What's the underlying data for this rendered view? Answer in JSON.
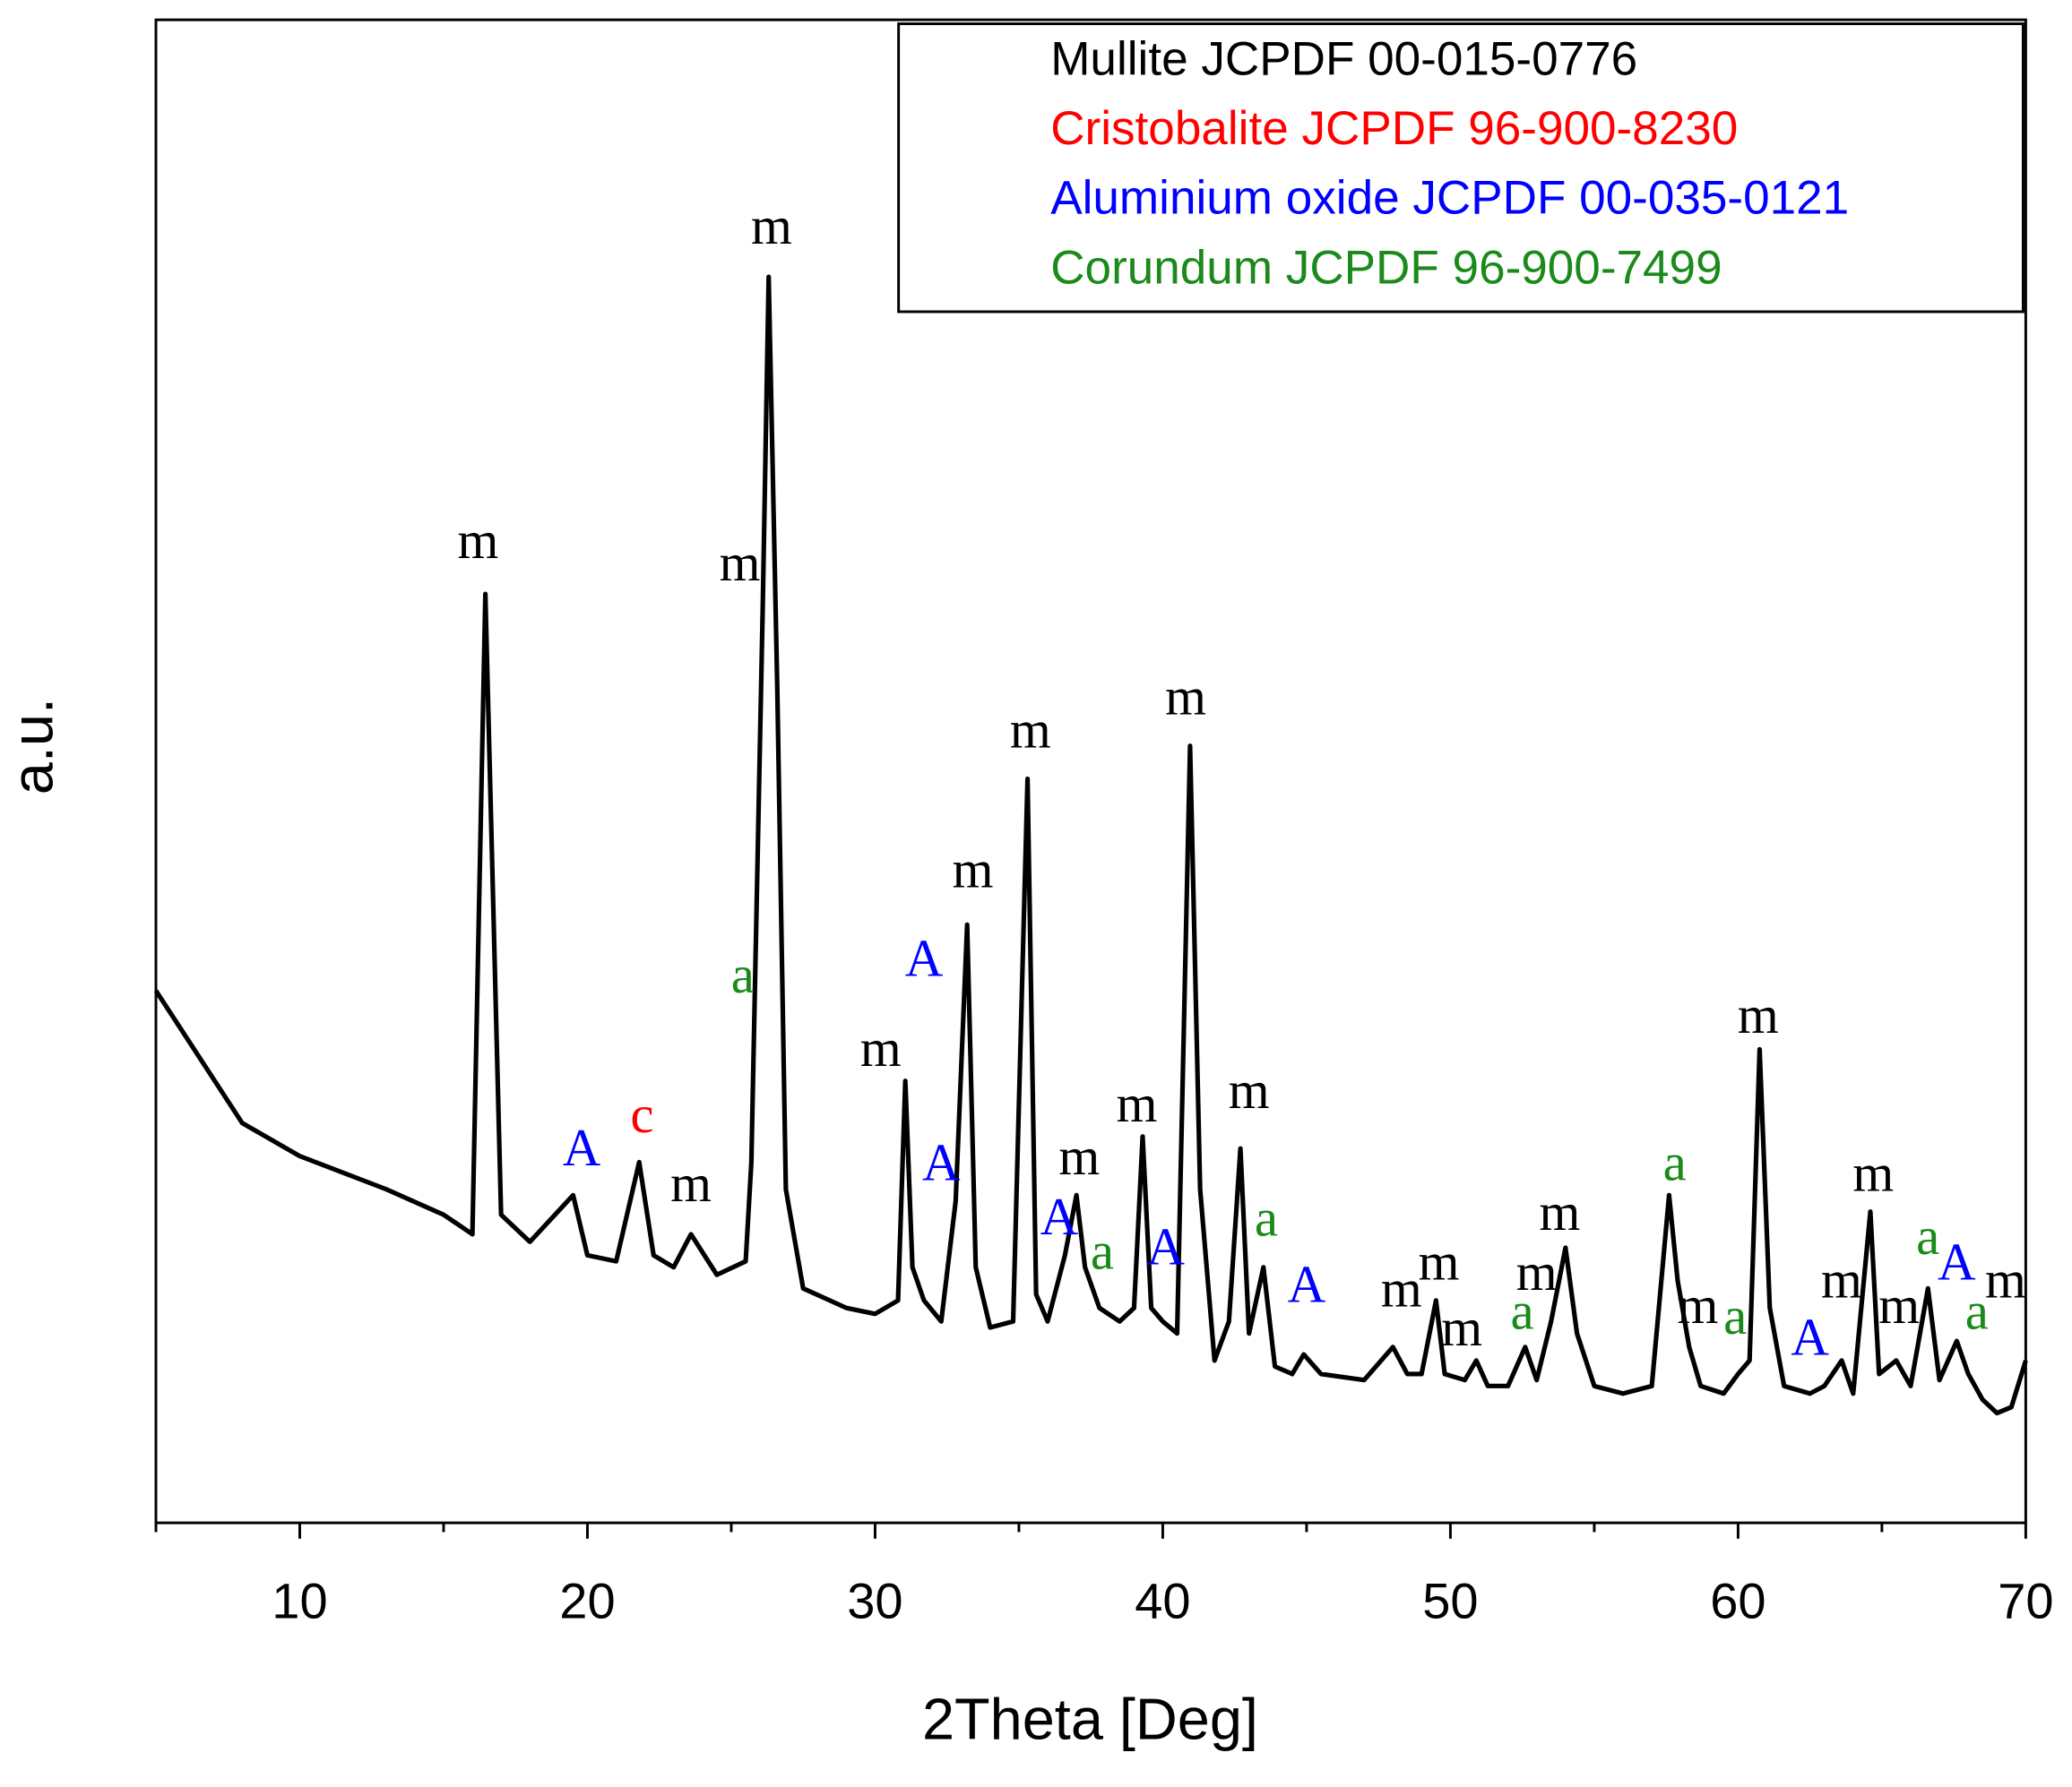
{
  "chart_data": {
    "type": "line",
    "x_label": "2Theta [Deg]",
    "y_label": "a.u.",
    "color": "#000000",
    "x": [
      5,
      8,
      10,
      13,
      15,
      16,
      16.45,
      17,
      18,
      19.5,
      20,
      21,
      21.8,
      22.3,
      23,
      23.6,
      24.5,
      25.5,
      25.7,
      26.1,
      26.3,
      26.6,
      26.9,
      27.5,
      29,
      30,
      30.8,
      31.05,
      31.3,
      31.7,
      32.3,
      32.8,
      33.2,
      33.5,
      34,
      34.8,
      35.3,
      35.6,
      36,
      36.6,
      37,
      37.3,
      37.8,
      38.5,
      39,
      39.3,
      39.6,
      40,
      40.5,
      40.95,
      41.3,
      41.8,
      42.3,
      42.7,
      43,
      43.5,
      43.9,
      44.5,
      44.9,
      45.5,
      47,
      48,
      48.5,
      49,
      49.5,
      49.8,
      50.5,
      50.9,
      51.3,
      52,
      52.6,
      53,
      53.5,
      54,
      54.4,
      55,
      56,
      57,
      57.6,
      57.9,
      58.3,
      58.7,
      59.5,
      60,
      60.4,
      60.75,
      61.1,
      61.6,
      62.5,
      63,
      63.6,
      64,
      64.6,
      64.9,
      65.5,
      66,
      66.6,
      67,
      67.6,
      68,
      68.5,
      69,
      69.5,
      70
    ],
    "values": [
      35.4,
      26.6,
      24.4,
      22.2,
      20.5,
      19.2,
      61.8,
      20.5,
      18.7,
      21.8,
      17.8,
      17.4,
      24.0,
      17.8,
      17.0,
      19.2,
      16.5,
      17.4,
      24.0,
      61.3,
      82.9,
      55.6,
      22.2,
      15.6,
      14.3,
      13.9,
      14.8,
      29.4,
      17.0,
      14.8,
      13.4,
      21.4,
      39.8,
      17.0,
      13.0,
      13.4,
      49.5,
      15.2,
      13.4,
      17.8,
      21.8,
      17.0,
      14.3,
      13.4,
      14.3,
      25.7,
      14.3,
      13.4,
      12.6,
      51.7,
      22.2,
      10.8,
      13.4,
      24.9,
      12.6,
      17.0,
      10.4,
      9.9,
      11.2,
      9.9,
      9.5,
      11.7,
      9.9,
      9.9,
      14.8,
      9.9,
      9.5,
      10.8,
      9.1,
      9.1,
      11.7,
      9.5,
      13.4,
      18.3,
      12.6,
      9.1,
      8.6,
      9.1,
      21.8,
      16.1,
      11.7,
      9.1,
      8.6,
      9.9,
      10.8,
      31.5,
      14.3,
      9.1,
      8.6,
      9.1,
      10.8,
      8.6,
      20.7,
      9.9,
      10.8,
      9.1,
      15.6,
      9.5,
      12.1,
      9.9,
      8.2,
      7.3,
      7.7,
      10.8
    ],
    "xlim": [
      5,
      70
    ],
    "xticks": [
      10,
      20,
      30,
      40,
      50,
      60,
      70
    ],
    "xminorticks": [
      5,
      15,
      25,
      35,
      45,
      55,
      65
    ],
    "ylim": [
      0,
      100
    ],
    "legend": {
      "position": "upper right",
      "entries": [
        {
          "text": "Mullite JCPDF 00-015-0776",
          "color": "#000000"
        },
        {
          "text": "Cristobalite JCPDF 96-900-8230",
          "color": "#ff0000"
        },
        {
          "text": "Aluminium oxide JCPDF 00-035-0121",
          "color": "#0000ff"
        },
        {
          "text": "Corundum JCPDF 96-900-7499",
          "color": "#1a8a1a"
        }
      ]
    },
    "annotations": [
      {
        "text": "m",
        "x": 16.2,
        "y": 65.0,
        "color": "#000000"
      },
      {
        "text": "A",
        "x": 19.8,
        "y": 24.6,
        "color": "#0000ff"
      },
      {
        "text": "c",
        "x": 21.9,
        "y": 26.8,
        "color": "#ff0000"
      },
      {
        "text": "m",
        "x": 23.6,
        "y": 22.2,
        "color": "#000000"
      },
      {
        "text": "a",
        "x": 25.4,
        "y": 36.1,
        "color": "#1a8a1a"
      },
      {
        "text": "m",
        "x": 25.3,
        "y": 63.5,
        "color": "#000000"
      },
      {
        "text": "m",
        "x": 26.4,
        "y": 85.9,
        "color": "#000000"
      },
      {
        "text": "m",
        "x": 30.2,
        "y": 31.2,
        "color": "#000000"
      },
      {
        "text": "A",
        "x": 31.7,
        "y": 37.2,
        "color": "#0000ff"
      },
      {
        "text": "A",
        "x": 32.3,
        "y": 23.6,
        "color": "#0000ff"
      },
      {
        "text": "m",
        "x": 33.4,
        "y": 43.1,
        "color": "#000000"
      },
      {
        "text": "m",
        "x": 35.4,
        "y": 52.4,
        "color": "#000000"
      },
      {
        "text": "m",
        "x": 37.1,
        "y": 24.0,
        "color": "#000000"
      },
      {
        "text": "A",
        "x": 36.4,
        "y": 20.0,
        "color": "#0000ff"
      },
      {
        "text": "a",
        "x": 37.9,
        "y": 17.7,
        "color": "#1a8a1a"
      },
      {
        "text": "m",
        "x": 39.1,
        "y": 27.5,
        "color": "#000000"
      },
      {
        "text": "A",
        "x": 40.1,
        "y": 18.0,
        "color": "#0000ff"
      },
      {
        "text": "m",
        "x": 40.8,
        "y": 54.6,
        "color": "#000000"
      },
      {
        "text": "m",
        "x": 43.0,
        "y": 28.4,
        "color": "#000000"
      },
      {
        "text": "a",
        "x": 43.6,
        "y": 19.9,
        "color": "#1a8a1a"
      },
      {
        "text": "A",
        "x": 45.0,
        "y": 15.5,
        "color": "#0000ff"
      },
      {
        "text": "m",
        "x": 48.3,
        "y": 15.2,
        "color": "#000000"
      },
      {
        "text": "m",
        "x": 49.6,
        "y": 17.0,
        "color": "#000000"
      },
      {
        "text": "m",
        "x": 50.4,
        "y": 12.6,
        "color": "#000000"
      },
      {
        "text": "a",
        "x": 52.5,
        "y": 13.7,
        "color": "#1a8a1a"
      },
      {
        "text": "m",
        "x": 53.0,
        "y": 16.3,
        "color": "#000000"
      },
      {
        "text": "m",
        "x": 53.8,
        "y": 20.3,
        "color": "#000000"
      },
      {
        "text": "a",
        "x": 57.8,
        "y": 23.6,
        "color": "#1a8a1a"
      },
      {
        "text": "m",
        "x": 58.6,
        "y": 14.1,
        "color": "#000000"
      },
      {
        "text": "a",
        "x": 59.9,
        "y": 13.4,
        "color": "#1a8a1a"
      },
      {
        "text": "A",
        "x": 62.5,
        "y": 12.0,
        "color": "#0000ff"
      },
      {
        "text": "m",
        "x": 60.7,
        "y": 33.4,
        "color": "#000000"
      },
      {
        "text": "m",
        "x": 64.7,
        "y": 22.9,
        "color": "#000000"
      },
      {
        "text": "m",
        "x": 63.6,
        "y": 15.8,
        "color": "#000000"
      },
      {
        "text": "m",
        "x": 65.6,
        "y": 14.1,
        "color": "#000000"
      },
      {
        "text": "a",
        "x": 66.6,
        "y": 18.7,
        "color": "#1a8a1a"
      },
      {
        "text": "A",
        "x": 67.6,
        "y": 17.0,
        "color": "#0000ff"
      },
      {
        "text": "a",
        "x": 68.3,
        "y": 13.7,
        "color": "#1a8a1a"
      },
      {
        "text": "m",
        "x": 69.3,
        "y": 15.8,
        "color": "#000000"
      }
    ]
  }
}
